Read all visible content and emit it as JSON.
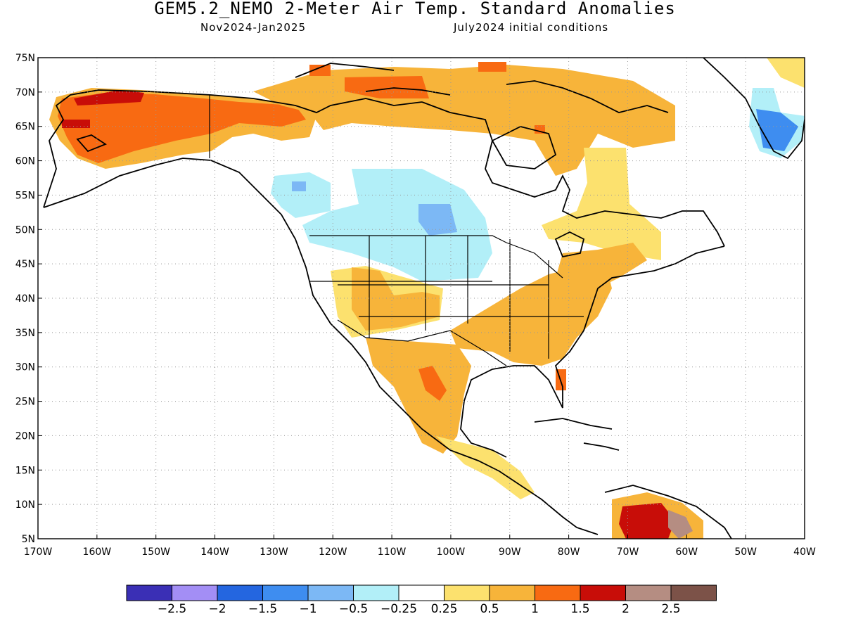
{
  "title": "GEM5.2_NEMO 2-Meter Air Temp. Standard Anomalies",
  "subtitle_left": "Nov2024-Jan2025",
  "subtitle_right": "July2024 initial conditions",
  "map": {
    "projection": "equirectangular",
    "lon_range": [
      -170,
      -40
    ],
    "lat_range": [
      5,
      75
    ],
    "grid": "dotted",
    "x_tick_labels": [
      "170W",
      "160W",
      "150W",
      "140W",
      "130W",
      "120W",
      "110W",
      "100W",
      "90W",
      "80W",
      "70W",
      "60W",
      "50W",
      "40W"
    ],
    "y_tick_labels": [
      "5N",
      "10N",
      "15N",
      "20N",
      "25N",
      "30N",
      "35N",
      "40N",
      "45N",
      "50N",
      "55N",
      "60N",
      "65N",
      "70N",
      "75N"
    ]
  },
  "legend": {
    "colors": [
      "#3a2fb5",
      "#a38ef5",
      "#2466e0",
      "#3e8df0",
      "#7cb8f5",
      "#b2eff8",
      "#ffffff",
      "#fce16e",
      "#f7b43a",
      "#f86a12",
      "#c80d08",
      "#b58d82",
      "#7c5248"
    ],
    "labels": [
      "-2.5",
      "-2",
      "-1.5",
      "-1",
      "-0.5",
      "-0.25",
      "0.25",
      "0.5",
      "1",
      "1.5",
      "2",
      "2.5"
    ]
  },
  "anomaly_regions": [
    {
      "region": "Alaska / NW Canada",
      "category": "1 to 1.5"
    },
    {
      "region": "Northern Alaska coast",
      "category": "1.5 to 2"
    },
    {
      "region": "Western Canada / Northern Plains",
      "category": "-0.5 to -0.25"
    },
    {
      "region": "Saskatchewan / Manitoba",
      "category": "-1 to -0.5"
    },
    {
      "region": "Southern & Eastern US",
      "category": "0.5 to 1"
    },
    {
      "region": "Mexico",
      "category": "0.5 to 1.5"
    },
    {
      "region": "Northern South America",
      "category": "1.5 to 2.5"
    },
    {
      "region": "Southern Greenland",
      "category": "-1.5 to -0.5"
    }
  ]
}
